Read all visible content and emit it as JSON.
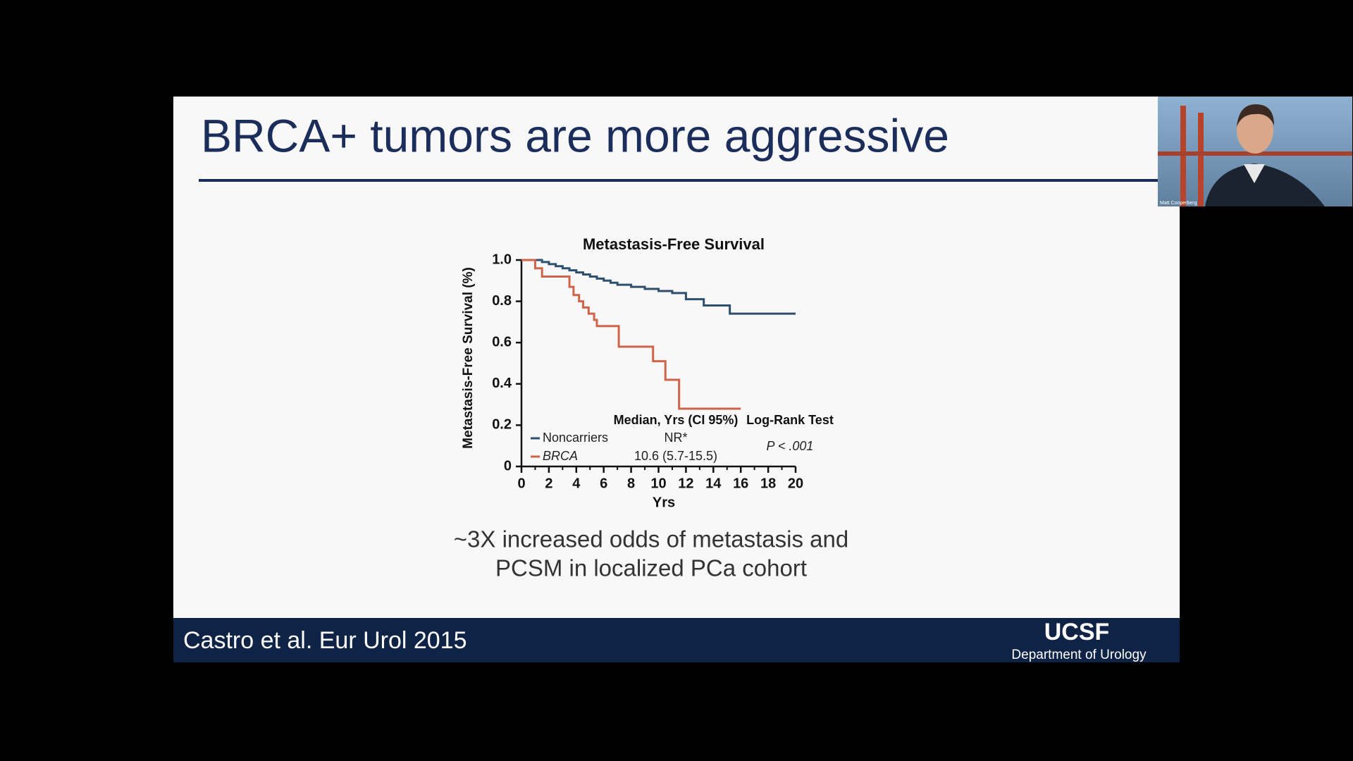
{
  "slide": {
    "title": "BRCA+ tumors are more aggressive",
    "chart": {
      "type": "line",
      "step": true,
      "title": "Metastasis-Free Survival",
      "ylabel": "Metastasis-Free Survival (%)",
      "xlabel": "Yrs",
      "xlim": [
        0,
        20
      ],
      "xticks": [
        0,
        2,
        4,
        6,
        8,
        10,
        12,
        14,
        16,
        18,
        20
      ],
      "ylim": [
        0,
        1
      ],
      "yticks": [
        0,
        0.2,
        0.4,
        0.6,
        0.8,
        {
          "value": 1,
          "label": "1.0"
        }
      ],
      "series": [
        {
          "name": "Noncarriers",
          "color": "#2e4f6e",
          "median": "NR*",
          "x": [
            0,
            1.5,
            2,
            2.5,
            3,
            3.5,
            4,
            4.5,
            5,
            5.5,
            6,
            6.5,
            7,
            8,
            9,
            10,
            11,
            12,
            13.3,
            15.2,
            20
          ],
          "values": [
            1,
            0.99,
            0.98,
            0.97,
            0.96,
            0.95,
            0.94,
            0.93,
            0.92,
            0.91,
            0.9,
            0.89,
            0.88,
            0.87,
            0.86,
            0.85,
            0.84,
            0.81,
            0.78,
            0.74,
            0.74
          ]
        },
        {
          "name": "BRCA",
          "color": "#d0644a",
          "median": "10.6 (5.7-15.5)",
          "x": [
            0,
            1,
            1.5,
            3.5,
            3.8,
            4.2,
            4.5,
            4.9,
            5.3,
            5.5,
            7.1,
            9.6,
            10.5,
            11.5,
            16
          ],
          "values": [
            1,
            0.96,
            0.92,
            0.87,
            0.83,
            0.8,
            0.77,
            0.74,
            0.71,
            0.68,
            0.58,
            0.51,
            0.42,
            0.28,
            0.28
          ]
        }
      ],
      "median_header": "Median, Yrs (CI 95%)",
      "test_header": "Log-Rank Test",
      "p_value": "P < .001"
    },
    "caption": [
      "~3X increased odds of metastasis and",
      "PCSM in localized PCa cohort"
    ],
    "citation": "Castro et al. Eur Urol 2015",
    "logo": "UCSF",
    "department": "Department of Urology"
  },
  "webcam": {
    "name": "Matt Cooperberg"
  }
}
